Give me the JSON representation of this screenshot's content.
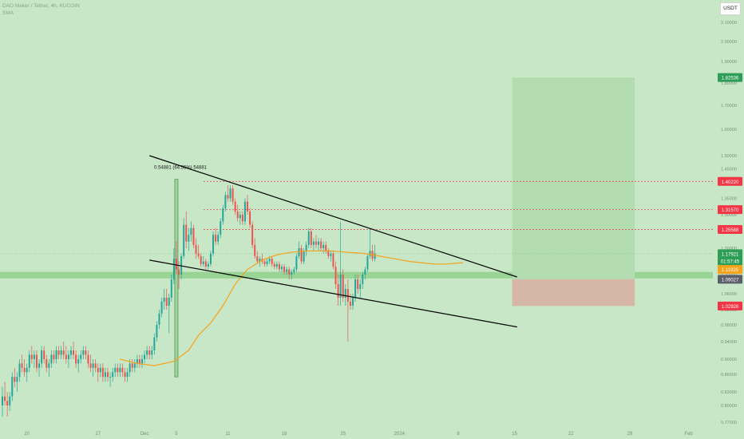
{
  "header": {
    "symbol_line": "DAO Maker / Tether, 4h, KUCOIN",
    "indicator": "SMA",
    "currency_button": "USDT"
  },
  "colors": {
    "background": "#c7e7c6",
    "up_candle": "#26a69a",
    "down_candle": "#ef5350",
    "sma": "#f7a21b",
    "trendline": "#000000",
    "target_zone": "#b3dcb0",
    "stop_zone": "#d6b6a6",
    "support_band": "#8fd18c",
    "label_red": "#f23645",
    "label_green": "#2e9e57",
    "label_orange": "#f7a21b",
    "label_dark": "#5d606b"
  },
  "chart_data": {
    "type": "candlestick",
    "x_unit": "4h candles",
    "ylim": [
      0.76,
      2.15
    ],
    "y_ticks": [
      0.77,
      0.8,
      0.83,
      0.865,
      0.9,
      0.94,
      0.98,
      1.02,
      1.06,
      1.1,
      1.15,
      1.2,
      1.25,
      1.3,
      1.35,
      1.4,
      1.45,
      1.5,
      1.6,
      1.7,
      1.8,
      1.9,
      2.0,
      2.1
    ],
    "y_tick_labels": [
      "0.77000",
      "0.80000",
      "0.83000",
      "0.86500",
      "0.90000",
      "0.94000",
      "0.98000",
      "1.02000",
      "1.06000",
      "1.10000",
      "1.15000",
      "1.20000",
      "1.25000",
      "1.30000",
      "1.35000",
      "1.40000",
      "1.45000",
      "1.50000",
      "1.60000",
      "1.70000",
      "1.80000",
      "1.90000",
      "2.00000",
      "2.10000"
    ],
    "x_ticks": [
      "20",
      "27",
      "Dec",
      "5",
      "11",
      "18",
      "25",
      "2024",
      "8",
      "15",
      "22",
      "29",
      "Feb",
      "9"
    ],
    "x_tick_index": [
      10,
      39,
      58,
      71,
      92,
      115,
      139,
      162,
      186,
      209,
      232,
      256,
      280,
      304
    ],
    "candles_ohlc": [
      [
        0.8,
        0.84,
        0.78,
        0.82
      ],
      [
        0.82,
        0.85,
        0.8,
        0.81
      ],
      [
        0.81,
        0.83,
        0.78,
        0.8
      ],
      [
        0.8,
        0.83,
        0.79,
        0.82
      ],
      [
        0.82,
        0.87,
        0.81,
        0.86
      ],
      [
        0.86,
        0.88,
        0.84,
        0.85
      ],
      [
        0.85,
        0.87,
        0.83,
        0.86
      ],
      [
        0.86,
        0.9,
        0.85,
        0.89
      ],
      [
        0.89,
        0.91,
        0.87,
        0.88
      ],
      [
        0.88,
        0.9,
        0.86,
        0.87
      ],
      [
        0.87,
        0.89,
        0.85,
        0.88
      ],
      [
        0.88,
        0.92,
        0.87,
        0.91
      ],
      [
        0.91,
        0.93,
        0.89,
        0.9
      ],
      [
        0.9,
        0.92,
        0.88,
        0.91
      ],
      [
        0.91,
        0.92,
        0.87,
        0.88
      ],
      [
        0.88,
        0.9,
        0.86,
        0.89
      ],
      [
        0.89,
        0.93,
        0.88,
        0.92
      ],
      [
        0.92,
        0.93,
        0.89,
        0.9
      ],
      [
        0.9,
        0.91,
        0.87,
        0.88
      ],
      [
        0.88,
        0.9,
        0.86,
        0.89
      ],
      [
        0.89,
        0.92,
        0.88,
        0.91
      ],
      [
        0.91,
        0.92,
        0.89,
        0.9
      ],
      [
        0.9,
        0.93,
        0.89,
        0.92
      ],
      [
        0.92,
        0.93,
        0.9,
        0.91
      ],
      [
        0.91,
        0.93,
        0.9,
        0.92
      ],
      [
        0.92,
        0.94,
        0.9,
        0.91
      ],
      [
        0.91,
        0.93,
        0.89,
        0.9
      ],
      [
        0.9,
        0.92,
        0.88,
        0.91
      ],
      [
        0.91,
        0.93,
        0.9,
        0.92
      ],
      [
        0.92,
        0.94,
        0.9,
        0.91
      ],
      [
        0.91,
        0.92,
        0.88,
        0.89
      ],
      [
        0.89,
        0.91,
        0.87,
        0.9
      ],
      [
        0.9,
        0.92,
        0.89,
        0.91
      ],
      [
        0.91,
        0.93,
        0.9,
        0.92
      ],
      [
        0.92,
        0.93,
        0.9,
        0.91
      ],
      [
        0.91,
        0.92,
        0.88,
        0.89
      ],
      [
        0.89,
        0.91,
        0.87,
        0.88
      ],
      [
        0.88,
        0.9,
        0.86,
        0.89
      ],
      [
        0.89,
        0.9,
        0.87,
        0.88
      ],
      [
        0.88,
        0.89,
        0.85,
        0.87
      ],
      [
        0.87,
        0.89,
        0.86,
        0.88
      ],
      [
        0.88,
        0.89,
        0.85,
        0.86
      ],
      [
        0.86,
        0.88,
        0.85,
        0.87
      ],
      [
        0.87,
        0.88,
        0.85,
        0.86
      ],
      [
        0.86,
        0.87,
        0.84,
        0.86
      ],
      [
        0.86,
        0.88,
        0.85,
        0.87
      ],
      [
        0.87,
        0.89,
        0.86,
        0.88
      ],
      [
        0.88,
        0.89,
        0.86,
        0.87
      ],
      [
        0.87,
        0.89,
        0.86,
        0.88
      ],
      [
        0.88,
        0.89,
        0.86,
        0.87
      ],
      [
        0.87,
        0.88,
        0.85,
        0.86
      ],
      [
        0.86,
        0.88,
        0.85,
        0.87
      ],
      [
        0.87,
        0.9,
        0.86,
        0.89
      ],
      [
        0.89,
        0.9,
        0.87,
        0.88
      ],
      [
        0.88,
        0.9,
        0.87,
        0.89
      ],
      [
        0.89,
        0.91,
        0.88,
        0.9
      ],
      [
        0.9,
        0.91,
        0.88,
        0.89
      ],
      [
        0.89,
        0.91,
        0.88,
        0.9
      ],
      [
        0.9,
        0.92,
        0.89,
        0.91
      ],
      [
        0.91,
        0.93,
        0.9,
        0.92
      ],
      [
        0.92,
        0.93,
        0.9,
        0.91
      ],
      [
        0.91,
        0.93,
        0.9,
        0.92
      ],
      [
        0.92,
        0.96,
        0.91,
        0.95
      ],
      [
        0.95,
        0.99,
        0.94,
        0.98
      ],
      [
        0.98,
        1.02,
        0.97,
        1.01
      ],
      [
        1.01,
        1.05,
        1.0,
        1.04
      ],
      [
        1.04,
        1.07,
        1.02,
        1.05
      ],
      [
        1.05,
        1.07,
        1.02,
        1.03
      ],
      [
        1.03,
        1.06,
        0.96,
        1.05
      ],
      [
        1.05,
        1.1,
        1.04,
        1.09
      ],
      [
        1.09,
        1.2,
        1.08,
        1.16
      ],
      [
        1.16,
        1.22,
        1.1,
        1.12
      ],
      [
        1.12,
        1.15,
        1.07,
        1.1
      ],
      [
        1.1,
        1.18,
        1.09,
        1.17
      ],
      [
        1.17,
        1.29,
        1.16,
        1.27
      ],
      [
        1.27,
        1.31,
        1.2,
        1.22
      ],
      [
        1.22,
        1.26,
        1.19,
        1.24
      ],
      [
        1.24,
        1.28,
        1.22,
        1.26
      ],
      [
        1.26,
        1.27,
        1.2,
        1.21
      ],
      [
        1.21,
        1.23,
        1.16,
        1.18
      ],
      [
        1.18,
        1.21,
        1.16,
        1.17
      ],
      [
        1.17,
        1.18,
        1.13,
        1.14
      ],
      [
        1.14,
        1.17,
        1.13,
        1.15
      ],
      [
        1.15,
        1.16,
        1.12,
        1.13
      ],
      [
        1.13,
        1.15,
        1.12,
        1.14
      ],
      [
        1.14,
        1.19,
        1.13,
        1.18
      ],
      [
        1.18,
        1.25,
        1.17,
        1.24
      ],
      [
        1.24,
        1.26,
        1.21,
        1.22
      ],
      [
        1.22,
        1.25,
        1.21,
        1.24
      ],
      [
        1.24,
        1.29,
        1.23,
        1.28
      ],
      [
        1.28,
        1.33,
        1.27,
        1.32
      ],
      [
        1.32,
        1.37,
        1.31,
        1.36
      ],
      [
        1.36,
        1.39,
        1.34,
        1.35
      ],
      [
        1.35,
        1.39,
        1.34,
        1.38
      ],
      [
        1.38,
        1.39,
        1.33,
        1.34
      ],
      [
        1.34,
        1.35,
        1.3,
        1.31
      ],
      [
        1.31,
        1.33,
        1.28,
        1.29
      ],
      [
        1.29,
        1.31,
        1.27,
        1.3
      ],
      [
        1.3,
        1.31,
        1.27,
        1.28
      ],
      [
        1.28,
        1.35,
        1.27,
        1.34
      ],
      [
        1.34,
        1.36,
        1.3,
        1.31
      ],
      [
        1.31,
        1.32,
        1.26,
        1.27
      ],
      [
        1.27,
        1.28,
        1.2,
        1.21
      ],
      [
        1.21,
        1.23,
        1.16,
        1.17
      ],
      [
        1.17,
        1.19,
        1.14,
        1.15
      ],
      [
        1.15,
        1.17,
        1.13,
        1.16
      ],
      [
        1.16,
        1.18,
        1.14,
        1.15
      ],
      [
        1.15,
        1.16,
        1.13,
        1.14
      ],
      [
        1.14,
        1.16,
        1.13,
        1.15
      ],
      [
        1.15,
        1.17,
        1.14,
        1.16
      ],
      [
        1.16,
        1.17,
        1.13,
        1.14
      ],
      [
        1.14,
        1.15,
        1.12,
        1.13
      ],
      [
        1.13,
        1.15,
        1.12,
        1.14
      ],
      [
        1.14,
        1.15,
        1.11,
        1.12
      ],
      [
        1.12,
        1.14,
        1.11,
        1.13
      ],
      [
        1.13,
        1.14,
        1.1,
        1.11
      ],
      [
        1.11,
        1.13,
        1.1,
        1.12
      ],
      [
        1.12,
        1.13,
        1.09,
        1.1
      ],
      [
        1.1,
        1.12,
        1.09,
        1.11
      ],
      [
        1.11,
        1.13,
        1.1,
        1.12
      ],
      [
        1.12,
        1.18,
        1.11,
        1.17
      ],
      [
        1.17,
        1.22,
        1.16,
        1.2
      ],
      [
        1.2,
        1.21,
        1.14,
        1.15
      ],
      [
        1.15,
        1.2,
        1.14,
        1.19
      ],
      [
        1.19,
        1.22,
        1.17,
        1.21
      ],
      [
        1.21,
        1.26,
        1.2,
        1.25
      ],
      [
        1.25,
        1.26,
        1.2,
        1.21
      ],
      [
        1.21,
        1.23,
        1.19,
        1.22
      ],
      [
        1.22,
        1.24,
        1.2,
        1.21
      ],
      [
        1.21,
        1.23,
        1.19,
        1.22
      ],
      [
        1.22,
        1.23,
        1.19,
        1.2
      ],
      [
        1.2,
        1.22,
        1.18,
        1.21
      ],
      [
        1.21,
        1.22,
        1.18,
        1.19
      ],
      [
        1.19,
        1.2,
        1.16,
        1.17
      ],
      [
        1.17,
        1.19,
        1.15,
        1.18
      ],
      [
        1.18,
        1.19,
        1.12,
        1.13
      ],
      [
        1.13,
        1.15,
        1.07,
        1.08
      ],
      [
        1.08,
        1.1,
        1.03,
        1.05
      ],
      [
        1.05,
        1.28,
        1.03,
        1.1
      ],
      [
        1.1,
        1.12,
        1.04,
        1.05
      ],
      [
        1.05,
        1.08,
        1.03,
        1.07
      ],
      [
        1.07,
        1.09,
        0.94,
        1.04
      ],
      [
        1.04,
        1.06,
        1.02,
        1.03
      ],
      [
        1.03,
        1.06,
        1.02,
        1.05
      ],
      [
        1.05,
        1.1,
        1.04,
        1.09
      ],
      [
        1.09,
        1.1,
        1.06,
        1.07
      ],
      [
        1.07,
        1.09,
        1.05,
        1.08
      ],
      [
        1.08,
        1.11,
        1.07,
        1.1
      ],
      [
        1.1,
        1.13,
        1.09,
        1.12
      ],
      [
        1.12,
        1.18,
        1.11,
        1.17
      ],
      [
        1.17,
        1.26,
        1.16,
        1.19
      ],
      [
        1.19,
        1.21,
        1.15,
        1.16
      ],
      [
        1.16,
        1.21,
        1.15,
        1.18
      ]
    ],
    "sma": {
      "name": "SMA",
      "points": [
        [
          48,
          0.9
        ],
        [
          55,
          0.89
        ],
        [
          62,
          0.885
        ],
        [
          70,
          0.895
        ],
        [
          76,
          0.92
        ],
        [
          80,
          0.955
        ],
        [
          85,
          0.985
        ],
        [
          90,
          1.03
        ],
        [
          95,
          1.08
        ],
        [
          100,
          1.12
        ],
        [
          106,
          1.155
        ],
        [
          112,
          1.175
        ],
        [
          118,
          1.185
        ],
        [
          126,
          1.19
        ],
        [
          134,
          1.19
        ],
        [
          140,
          1.185
        ],
        [
          148,
          1.18
        ],
        [
          154,
          1.17
        ],
        [
          160,
          1.16
        ],
        [
          166,
          1.15
        ],
        [
          171,
          1.145
        ],
        [
          176,
          1.14
        ],
        [
          181,
          1.14
        ],
        [
          188,
          1.145
        ]
      ]
    },
    "trendlines": [
      {
        "name": "upper",
        "from": [
          60,
          1.5
        ],
        "to": [
          210,
          1.095
        ]
      },
      {
        "name": "lower",
        "from": [
          60,
          1.155
        ],
        "to": [
          210,
          0.975
        ]
      }
    ],
    "measure": {
      "x": 71,
      "from": 0.86,
      "to": 1.41,
      "label": "0.54881 (64.55%) 54881"
    },
    "position": {
      "x_start": 208,
      "x_end": 258,
      "entry": 1.09027,
      "target": 1.82536,
      "stop": 1.02926
    },
    "support_band": [
      1.092,
      1.11
    ],
    "horizontal_levels": [
      1.4022,
      1.3157,
      1.25588
    ],
    "current_price": 1.17921,
    "sma_value": 1.11925,
    "price_labels": [
      {
        "value": 1.82536,
        "text": "1.82536",
        "color": "#2e9e57"
      },
      {
        "value": 1.4022,
        "text": "1.40220",
        "color": "#f23645"
      },
      {
        "value": 1.3157,
        "text": "1.31570",
        "color": "#f23645"
      },
      {
        "value": 1.25588,
        "text": "1.25588",
        "color": "#f23645"
      },
      {
        "value": 1.17921,
        "text": "1.17921",
        "sub": "01:57:45",
        "color": "#2e9e57"
      },
      {
        "value": 1.11925,
        "text": "1.11925",
        "color": "#f7a21b"
      },
      {
        "value": 1.09027,
        "text": "1.09027",
        "color": "#5d606b"
      },
      {
        "value": 1.02926,
        "text": "1.02926",
        "color": "#f23645"
      }
    ]
  }
}
